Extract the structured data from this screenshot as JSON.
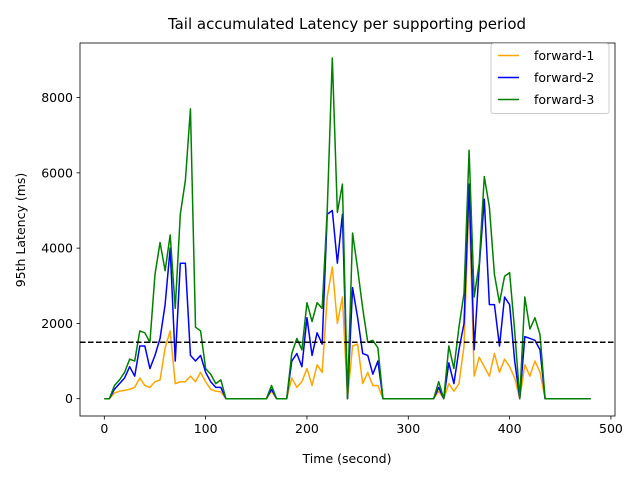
{
  "chart_data": {
    "type": "line",
    "title": "Tail accumulated Latency per supporting period",
    "xlabel": "Time (second)",
    "ylabel": "95th Latency (ms)",
    "xlim": [
      -24,
      504
    ],
    "ylim": [
      -460,
      9450
    ],
    "xticks": [
      0,
      100,
      200,
      300,
      400,
      500
    ],
    "yticks": [
      0,
      2000,
      4000,
      6000,
      8000
    ],
    "legend_position": "upper right",
    "grid": false,
    "reference_line": {
      "y": 1500,
      "style": "dashed",
      "color": "#000000"
    },
    "x": [
      0,
      5,
      10,
      15,
      20,
      25,
      30,
      35,
      40,
      45,
      50,
      55,
      60,
      65,
      70,
      75,
      80,
      85,
      90,
      95,
      100,
      105,
      110,
      115,
      120,
      125,
      130,
      135,
      140,
      145,
      150,
      155,
      160,
      165,
      170,
      175,
      180,
      185,
      190,
      195,
      200,
      205,
      210,
      215,
      220,
      225,
      230,
      235,
      240,
      245,
      250,
      255,
      260,
      265,
      270,
      275,
      280,
      285,
      290,
      295,
      300,
      305,
      310,
      315,
      320,
      325,
      330,
      335,
      340,
      345,
      350,
      355,
      360,
      365,
      370,
      375,
      380,
      385,
      390,
      395,
      400,
      405,
      410,
      415,
      420,
      425,
      430,
      435,
      440,
      445,
      450,
      455,
      460,
      465,
      470,
      475,
      480
    ],
    "series": [
      {
        "name": "forward-1",
        "color": "#ffa500",
        "values": [
          0,
          0,
          150,
          200,
          220,
          250,
          300,
          550,
          350,
          300,
          450,
          500,
          1350,
          1800,
          400,
          450,
          450,
          600,
          450,
          700,
          450,
          250,
          200,
          180,
          0,
          0,
          0,
          0,
          0,
          0,
          0,
          0,
          0,
          200,
          0,
          0,
          0,
          550,
          300,
          450,
          800,
          350,
          900,
          700,
          2700,
          3500,
          2000,
          2700,
          0,
          1400,
          1450,
          400,
          700,
          350,
          350,
          0,
          0,
          0,
          0,
          0,
          0,
          0,
          0,
          0,
          0,
          0,
          200,
          0,
          400,
          200,
          400,
          1400,
          5300,
          600,
          1100,
          850,
          600,
          1200,
          700,
          1050,
          850,
          550,
          0,
          900,
          600,
          1000,
          700,
          0,
          0,
          0,
          0,
          0,
          0,
          0,
          0,
          0,
          0
        ]
      },
      {
        "name": "forward-2",
        "color": "#0000ff",
        "values": [
          0,
          0,
          250,
          400,
          550,
          850,
          600,
          1400,
          1400,
          800,
          1150,
          1600,
          2500,
          4000,
          1000,
          3600,
          3600,
          1150,
          1000,
          1150,
          700,
          450,
          300,
          300,
          0,
          0,
          0,
          0,
          0,
          0,
          0,
          0,
          0,
          250,
          0,
          0,
          0,
          1000,
          1200,
          850,
          2150,
          1150,
          1750,
          1450,
          4900,
          5000,
          3600,
          4900,
          0,
          2950,
          2150,
          1200,
          1150,
          650,
          1000,
          0,
          0,
          0,
          0,
          0,
          0,
          0,
          0,
          0,
          0,
          0,
          300,
          0,
          950,
          400,
          1300,
          2000,
          5700,
          1300,
          3500,
          5300,
          2500,
          2500,
          1400,
          2700,
          2500,
          1000,
          0,
          1650,
          1600,
          1550,
          1300,
          0,
          0,
          0,
          0,
          0,
          0,
          0,
          0,
          0,
          0
        ]
      },
      {
        "name": "forward-3",
        "color": "#008000",
        "values": [
          0,
          0,
          350,
          500,
          700,
          1050,
          1000,
          1800,
          1750,
          1500,
          3300,
          4150,
          3400,
          4350,
          2400,
          4900,
          5800,
          7700,
          1900,
          1800,
          800,
          650,
          400,
          500,
          0,
          0,
          0,
          0,
          0,
          0,
          0,
          0,
          0,
          350,
          0,
          0,
          0,
          1200,
          1600,
          1300,
          2550,
          2050,
          2550,
          2400,
          5000,
          9050,
          4950,
          5700,
          0,
          4400,
          3450,
          2400,
          1500,
          1550,
          1350,
          0,
          0,
          0,
          0,
          0,
          0,
          0,
          0,
          0,
          0,
          0,
          450,
          0,
          1400,
          800,
          1900,
          2800,
          6600,
          2700,
          3600,
          5900,
          5100,
          3300,
          2550,
          3250,
          3350,
          1800,
          0,
          2700,
          1850,
          2150,
          1700,
          0,
          0,
          0,
          0,
          0,
          0,
          0,
          0,
          0,
          0
        ]
      }
    ]
  }
}
